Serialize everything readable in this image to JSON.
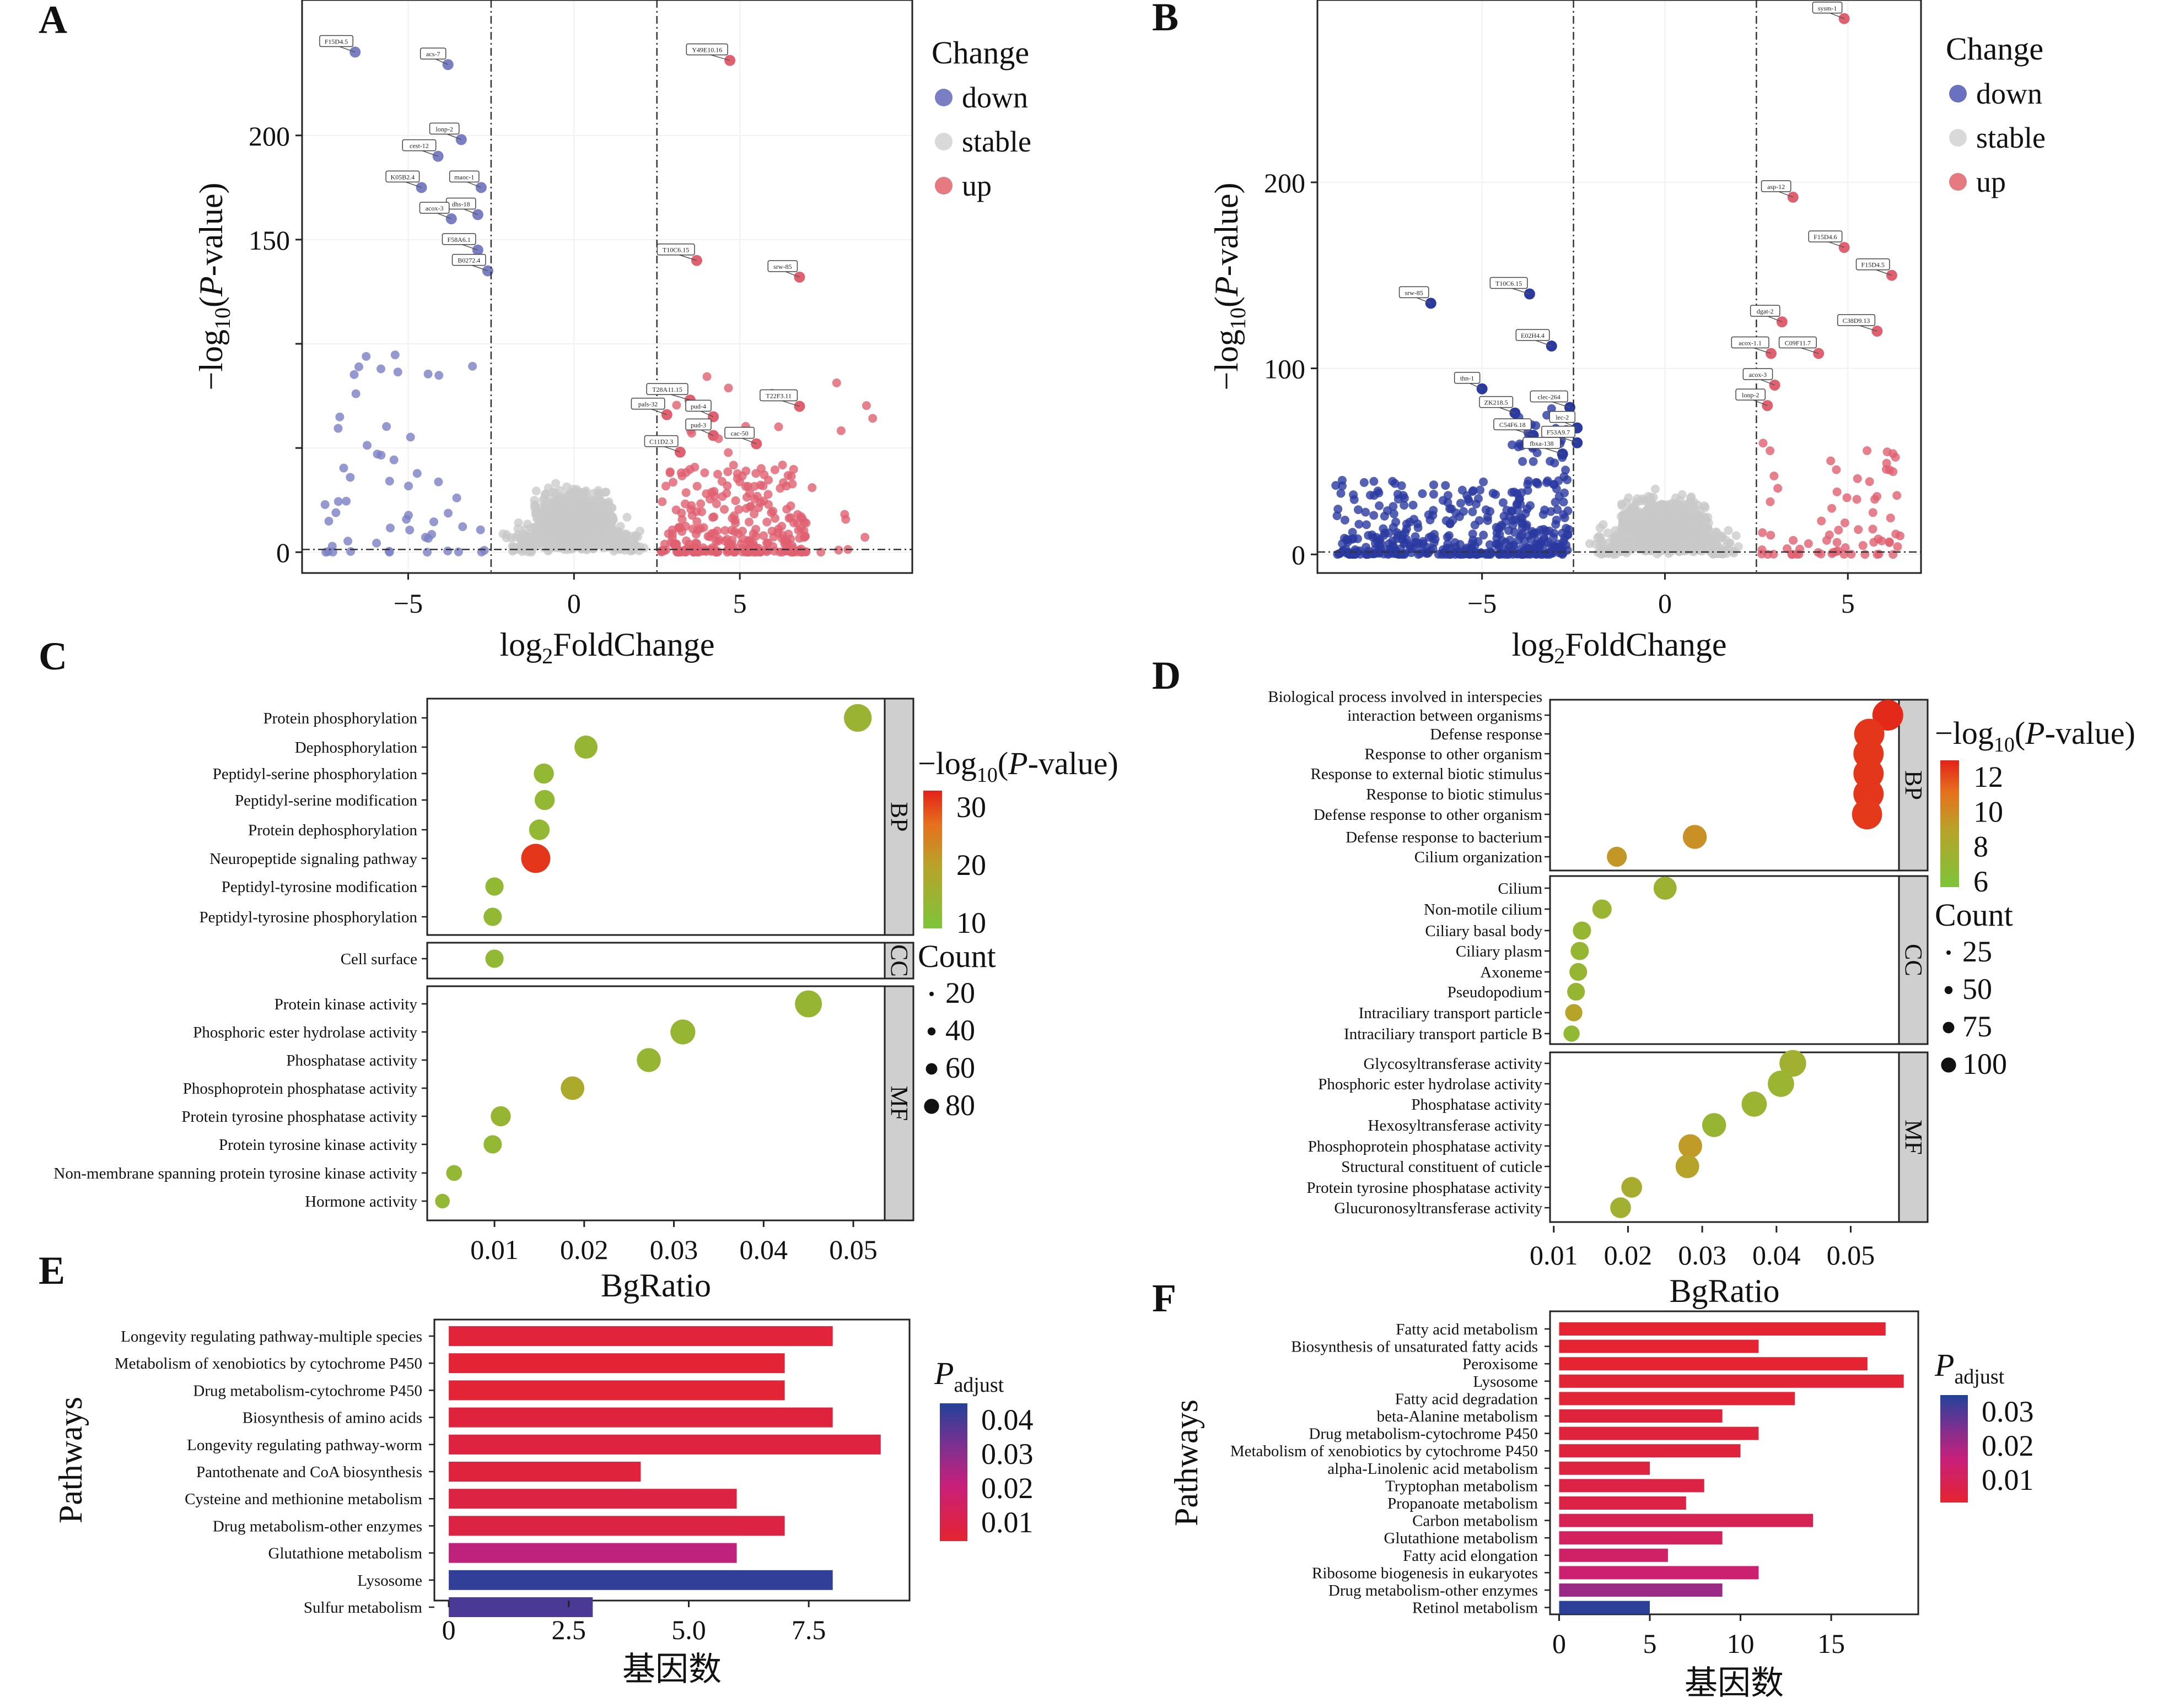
{
  "panels": {
    "A": "A",
    "B": "B",
    "C": "C",
    "D": "D",
    "E": "E",
    "F": "F"
  },
  "chart_data": [
    {
      "id": "A",
      "type": "scatter",
      "xlabel_base": "log",
      "xlabel_sub": "2",
      "xlabel_rest": "FoldChange",
      "ylabel_pre": "−log",
      "ylabel_sub": "10",
      "ylabel_open": "(",
      "ylabel_ital": "P",
      "ylabel_post": "-value)",
      "xticks": [
        -5,
        0,
        5
      ],
      "yticks": [
        0,
        50,
        100,
        150,
        200
      ],
      "xticklabels": [
        "−5",
        "0",
        "5"
      ],
      "yticklabels": [
        "0",
        "",
        "",
        "150",
        "200"
      ],
      "xlim": [
        -8.2,
        10.2
      ],
      "ylim": [
        -10,
        265
      ],
      "fc_threshold": 2.5,
      "p_threshold": 1.3,
      "legend": {
        "title": "Change",
        "items": [
          {
            "label": "down",
            "color": "#7a7fc4"
          },
          {
            "label": "stable",
            "color": "#d9d9d9"
          },
          {
            "label": "up",
            "color": "#e57a80"
          }
        ]
      },
      "colors": {
        "down": "#7a7fc4",
        "stable": "#c8c8c8",
        "up": "#e06070"
      },
      "labeled_genes": [
        {
          "name": "F15D4.5",
          "x": -6.6,
          "y": 240
        },
        {
          "name": "acs-7",
          "x": -3.8,
          "y": 234
        },
        {
          "name": "lonp-2",
          "x": -3.4,
          "y": 198
        },
        {
          "name": "cest-12",
          "x": -4.1,
          "y": 190
        },
        {
          "name": "K05B2.4",
          "x": -4.6,
          "y": 175
        },
        {
          "name": "maoc-1",
          "x": -2.8,
          "y": 175
        },
        {
          "name": "dhs-18",
          "x": -2.9,
          "y": 162
        },
        {
          "name": "acox-3",
          "x": -3.7,
          "y": 160
        },
        {
          "name": "F58A6.1",
          "x": -2.9,
          "y": 145
        },
        {
          "name": "B0272.4",
          "x": -2.6,
          "y": 135
        },
        {
          "name": "Y49E10.16",
          "x": 4.7,
          "y": 236
        },
        {
          "name": "T10C6.15",
          "x": 3.7,
          "y": 140
        },
        {
          "name": "srw-85",
          "x": 6.8,
          "y": 132
        },
        {
          "name": "T28A11.15",
          "x": 3.5,
          "y": 73
        },
        {
          "name": "pals-32",
          "x": 2.8,
          "y": 66
        },
        {
          "name": "pud-4",
          "x": 4.2,
          "y": 65
        },
        {
          "name": "T22F3.11",
          "x": 6.8,
          "y": 70
        },
        {
          "name": "pud-3",
          "x": 4.2,
          "y": 56
        },
        {
          "name": "C11D2.3",
          "x": 3.2,
          "y": 48
        },
        {
          "name": "cac-50",
          "x": 5.5,
          "y": 52
        }
      ]
    },
    {
      "id": "B",
      "type": "scatter",
      "xlabel_base": "log",
      "xlabel_sub": "2",
      "xlabel_rest": "FoldChange",
      "ylabel_pre": "−log",
      "ylabel_sub": "10",
      "ylabel_open": "(",
      "ylabel_ital": "P",
      "ylabel_post": "-value)",
      "xticks": [
        -5,
        0,
        5
      ],
      "yticks": [
        0,
        100,
        200
      ],
      "xticklabels": [
        "−5",
        "0",
        "5"
      ],
      "yticklabels": [
        "0",
        "100",
        "200"
      ],
      "xlim": [
        -9.5,
        7.0
      ],
      "ylim": [
        -10,
        298
      ],
      "fc_threshold": 2.5,
      "p_threshold": 1.3,
      "legend": {
        "title": "Change",
        "items": [
          {
            "label": "down",
            "color": "#6a72c0"
          },
          {
            "label": "stable",
            "color": "#d9d9d9"
          },
          {
            "label": "up",
            "color": "#e57a80"
          }
        ]
      },
      "colors": {
        "down": "#2b3aa0",
        "stable": "#c8c8c8",
        "up": "#e06070"
      },
      "labeled_genes": [
        {
          "name": "sysm-1",
          "x": 4.9,
          "y": 288
        },
        {
          "name": "asp-12",
          "x": 3.5,
          "y": 192
        },
        {
          "name": "F15D4.6",
          "x": 4.9,
          "y": 165
        },
        {
          "name": "F15D4.5",
          "x": 6.2,
          "y": 150
        },
        {
          "name": "dgat-2",
          "x": 3.2,
          "y": 125
        },
        {
          "name": "C38D9.13",
          "x": 5.8,
          "y": 120
        },
        {
          "name": "acox-1.1",
          "x": 2.9,
          "y": 108
        },
        {
          "name": "C09F11.7",
          "x": 4.2,
          "y": 108
        },
        {
          "name": "acox-3",
          "x": 3.0,
          "y": 91
        },
        {
          "name": "lonp-2",
          "x": 2.8,
          "y": 80
        },
        {
          "name": "srw-85",
          "x": -6.4,
          "y": 135
        },
        {
          "name": "T10C6.15",
          "x": -3.7,
          "y": 140
        },
        {
          "name": "E02H4.4",
          "x": -3.1,
          "y": 112
        },
        {
          "name": "thn-1",
          "x": -5.0,
          "y": 89
        },
        {
          "name": "ZK218.5",
          "x": -4.1,
          "y": 76
        },
        {
          "name": "clec-264",
          "x": -2.6,
          "y": 79
        },
        {
          "name": "C54F6.18",
          "x": -3.6,
          "y": 64
        },
        {
          "name": "lec-2",
          "x": -2.4,
          "y": 68
        },
        {
          "name": "fbxa-138",
          "x": -2.8,
          "y": 54
        },
        {
          "name": "F53A9.7",
          "x": -2.4,
          "y": 60
        }
      ]
    },
    {
      "id": "C",
      "type": "scatter",
      "xlabel": "BgRatio",
      "xticks": [
        0.01,
        0.02,
        0.03,
        0.04,
        0.05
      ],
      "xticklabels": [
        "0.01",
        "0.02",
        "0.03",
        "0.04",
        "0.05"
      ],
      "xlim": [
        0.0025,
        0.0535
      ],
      "color_title_pre": "−log",
      "color_title_sub": "10",
      "color_title_open": "(",
      "color_title_ital": "P",
      "color_title_post": "-value)",
      "color_ticks": [
        "30",
        "20",
        "10"
      ],
      "color_range": [
        5,
        36
      ],
      "size_title": "Count",
      "size_ticks": [
        "20",
        "40",
        "60",
        "80"
      ],
      "groups": [
        {
          "name": "BP",
          "terms": [
            {
              "term": "Protein phosphorylation",
              "x": 0.0505,
              "count": 62,
              "p": 12
            },
            {
              "term": "Dephosphorylation",
              "x": 0.0202,
              "count": 40,
              "p": 11
            },
            {
              "term": "Peptidyl-serine phosphorylation",
              "x": 0.0155,
              "count": 28,
              "p": 10
            },
            {
              "term": "Peptidyl-serine modification",
              "x": 0.0156,
              "count": 28,
              "p": 10
            },
            {
              "term": "Protein dephosphorylation",
              "x": 0.015,
              "count": 30,
              "p": 10
            },
            {
              "term": "Neuropeptide signaling pathway",
              "x": 0.0146,
              "count": 70,
              "p": 34
            },
            {
              "term": "Peptidyl-tyrosine modification",
              "x": 0.01,
              "count": 22,
              "p": 10
            },
            {
              "term": "Peptidyl-tyrosine phosphorylation",
              "x": 0.0098,
              "count": 22,
              "p": 10
            }
          ]
        },
        {
          "name": "CC",
          "terms": [
            {
              "term": "Cell surface",
              "x": 0.01,
              "count": 22,
              "p": 10
            }
          ]
        },
        {
          "name": "MF",
          "terms": [
            {
              "term": "Protein kinase activity",
              "x": 0.045,
              "count": 58,
              "p": 11
            },
            {
              "term": "Phosphoric ester hydrolase activity",
              "x": 0.031,
              "count": 48,
              "p": 11
            },
            {
              "term": "Phosphatase activity",
              "x": 0.0272,
              "count": 44,
              "p": 11
            },
            {
              "term": "Phosphoprotein phosphatase activity",
              "x": 0.0187,
              "count": 42,
              "p": 16
            },
            {
              "term": "Protein tyrosine phosphatase activity",
              "x": 0.0107,
              "count": 28,
              "p": 11
            },
            {
              "term": "Protein tyrosine kinase activity",
              "x": 0.0098,
              "count": 22,
              "p": 10
            },
            {
              "term": "Non-membrane spanning protein tyrosine kinase activity",
              "x": 0.0055,
              "count": 15,
              "p": 10
            },
            {
              "term": "Hormone activity",
              "x": 0.0042,
              "count": 12,
              "p": 10
            }
          ]
        }
      ]
    },
    {
      "id": "D",
      "type": "scatter",
      "xlabel": "BgRatio",
      "xticks": [
        0.01,
        0.02,
        0.03,
        0.04,
        0.05
      ],
      "xticklabels": [
        "0.01",
        "0.02",
        "0.03",
        "0.04",
        "0.05"
      ],
      "xlim": [
        0.0095,
        0.0565
      ],
      "color_title_pre": "−log",
      "color_title_sub": "10",
      "color_title_open": "(",
      "color_title_ital": "P",
      "color_title_post": "-value)",
      "color_ticks": [
        "12",
        "10",
        "8",
        "6"
      ],
      "color_range": [
        5,
        13
      ],
      "size_title": "Count",
      "size_ticks": [
        "25",
        "50",
        "75",
        "100"
      ],
      "groups": [
        {
          "name": "BP",
          "terms": [
            {
              "term": "Biological process involved in interspecies\ninteraction between organisms",
              "x": 0.055,
              "count": 110,
              "p": 12.8
            },
            {
              "term": "Defense response",
              "x": 0.0525,
              "count": 105,
              "p": 12.5
            },
            {
              "term": "Response to other organism",
              "x": 0.0524,
              "count": 105,
              "p": 12.5
            },
            {
              "term": "Response to external biotic stimulus",
              "x": 0.0524,
              "count": 105,
              "p": 12.5
            },
            {
              "term": "Response to biotic stimulus",
              "x": 0.0524,
              "count": 105,
              "p": 12.5
            },
            {
              "term": "Defense response to other organism",
              "x": 0.0522,
              "count": 104,
              "p": 12.4
            },
            {
              "term": "Defense response to bacterium",
              "x": 0.029,
              "count": 60,
              "p": 9.5
            },
            {
              "term": "Cilium organization",
              "x": 0.0185,
              "count": 38,
              "p": 9.2
            }
          ]
        },
        {
          "name": "CC",
          "terms": [
            {
              "term": "Cilium",
              "x": 0.025,
              "count": 55,
              "p": 7.0
            },
            {
              "term": "Non-motile cilium",
              "x": 0.0165,
              "count": 35,
              "p": 6.8
            },
            {
              "term": "Ciliary basal body",
              "x": 0.0138,
              "count": 30,
              "p": 6.5
            },
            {
              "term": "Ciliary plasm",
              "x": 0.0135,
              "count": 30,
              "p": 6.5
            },
            {
              "term": "Axoneme",
              "x": 0.0133,
              "count": 28,
              "p": 6.5
            },
            {
              "term": "Pseudopodium",
              "x": 0.013,
              "count": 28,
              "p": 6.5
            },
            {
              "term": "Intraciliary transport particle",
              "x": 0.0127,
              "count": 26,
              "p": 8.5
            },
            {
              "term": "Intraciliary transport particle B",
              "x": 0.0124,
              "count": 22,
              "p": 6.3
            }
          ]
        },
        {
          "name": "MF",
          "terms": [
            {
              "term": "Glycosyltransferase activity",
              "x": 0.0422,
              "count": 78,
              "p": 7.2
            },
            {
              "term": "Phosphoric ester hydrolase activity",
              "x": 0.0406,
              "count": 75,
              "p": 6.8
            },
            {
              "term": "Phosphatase activity",
              "x": 0.037,
              "count": 68,
              "p": 6.8
            },
            {
              "term": "Hexosyltransferase activity",
              "x": 0.0316,
              "count": 60,
              "p": 6.6
            },
            {
              "term": "Phosphoprotein phosphatase activity",
              "x": 0.0284,
              "count": 58,
              "p": 9.0
            },
            {
              "term": "Structural constituent of cuticle",
              "x": 0.028,
              "count": 58,
              "p": 8.5
            },
            {
              "term": "Protein tyrosine phosphatase activity",
              "x": 0.0205,
              "count": 42,
              "p": 7.6
            },
            {
              "term": "Glucuronosyltransferase activity",
              "x": 0.019,
              "count": 42,
              "p": 7.2
            }
          ]
        }
      ]
    },
    {
      "id": "E",
      "type": "bar",
      "orientation": "horizontal",
      "xlabel": "基因数",
      "ylabel": "Pathways",
      "xticks": [
        0,
        2.5,
        5.0,
        7.5
      ],
      "xticklabels": [
        "0",
        "2.5",
        "5.0",
        "7.5"
      ],
      "xlim": [
        -0.3,
        9.6
      ],
      "color_title_ital": "P",
      "color_title_sub": "adjust",
      "color_ticks": [
        "0.04",
        "0.03",
        "0.02",
        "0.01"
      ],
      "color_range": [
        0.0005,
        0.045
      ],
      "categories": [
        "Longevity regulating pathway-multiple species",
        "Metabolism of xenobiotics by cytochrome P450",
        "Drug metabolism-cytochrome P450",
        "Biosynthesis of amino acids",
        "Longevity regulating pathway-worm",
        "Pantothenate and CoA biosynthesis",
        "Cysteine and methionine metabolism",
        "Drug metabolism-other enzymes",
        "Glutathione metabolism",
        "Lysosome",
        "Sulfur metabolism"
      ],
      "values": [
        8,
        7,
        7,
        8,
        9,
        4,
        6,
        7,
        6,
        8,
        3
      ],
      "padj": [
        0.003,
        0.002,
        0.002,
        0.004,
        0.005,
        0.004,
        0.006,
        0.006,
        0.022,
        0.043,
        0.04
      ]
    },
    {
      "id": "F",
      "type": "bar",
      "orientation": "horizontal",
      "xlabel": "基因数",
      "ylabel": "Pathways",
      "xticks": [
        0,
        5,
        10,
        15
      ],
      "xticklabels": [
        "0",
        "5",
        "10",
        "15"
      ],
      "xlim": [
        -0.5,
        19.8
      ],
      "color_title_ital": "P",
      "color_title_sub": "adjust",
      "color_ticks": [
        "0.03",
        "0.02",
        "0.01"
      ],
      "color_range": [
        0.0005,
        0.035
      ],
      "categories": [
        "Fatty acid metabolism",
        "Biosynthesis of unsaturated fatty acids",
        "Peroxisome",
        "Lysosome",
        "Fatty acid degradation",
        "beta-Alanine metabolism",
        "Drug metabolism-cytochrome P450",
        "Metabolism of xenobiotics by cytochrome P450",
        "alpha-Linolenic acid metabolism",
        "Tryptophan metabolism",
        "Propanoate metabolism",
        "Carbon metabolism",
        "Glutathione metabolism",
        "Fatty acid elongation",
        "Ribosome biogenesis in eukaryotes",
        "Drug metabolism-other enzymes",
        "Retinol metabolism"
      ],
      "values": [
        18,
        11,
        17,
        19,
        13,
        9,
        11,
        10,
        5,
        8,
        7,
        14,
        9,
        6,
        11,
        9,
        5
      ],
      "padj": [
        0.001,
        0.001,
        0.001,
        0.002,
        0.002,
        0.003,
        0.003,
        0.003,
        0.004,
        0.005,
        0.005,
        0.008,
        0.01,
        0.012,
        0.014,
        0.022,
        0.034
      ]
    }
  ]
}
